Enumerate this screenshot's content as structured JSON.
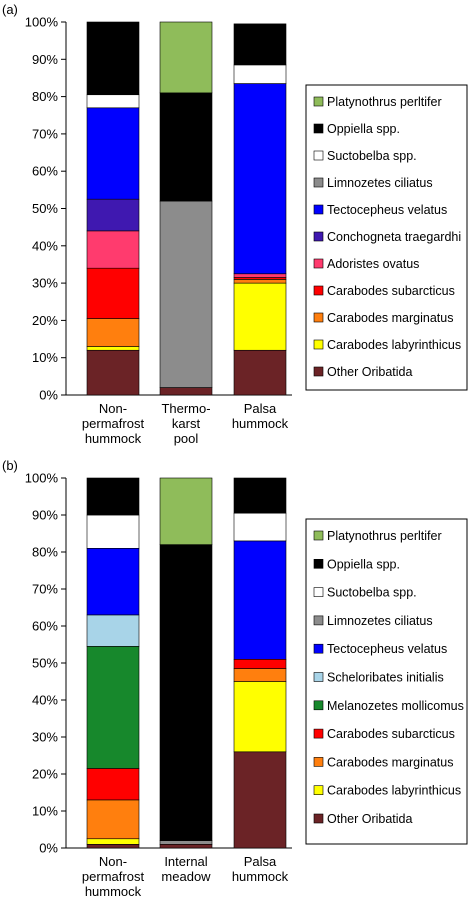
{
  "chart_data": [
    {
      "panel_label": "(a)",
      "type": "bar",
      "stacked": true,
      "y_format": "percent",
      "ylim": [
        0,
        100
      ],
      "yticks": [
        0,
        10,
        20,
        30,
        40,
        50,
        60,
        70,
        80,
        90,
        100
      ],
      "categories": [
        [
          "Non-",
          "permafrost",
          "hummock"
        ],
        [
          "Thermo-",
          "karst",
          "pool"
        ],
        [
          "Palsa",
          "hummock"
        ]
      ],
      "series": [
        {
          "name": "Other Oribatida",
          "color": "#6b2326",
          "values": [
            12,
            2,
            12
          ]
        },
        {
          "name": "Carabodes labyrinthicus",
          "color": "#ffff00",
          "values": [
            1,
            0,
            18
          ]
        },
        {
          "name": "Carabodes marginatus",
          "color": "#ff7f0e",
          "values": [
            7.5,
            0,
            1
          ]
        },
        {
          "name": "Carabodes subarcticus",
          "color": "#ff0000",
          "values": [
            13.5,
            0,
            0.5
          ]
        },
        {
          "name": "Adoristes ovatus",
          "color": "#ff3b6e",
          "values": [
            10,
            0,
            1
          ]
        },
        {
          "name": "Conchogneta traegardhi",
          "color": "#3f18b0",
          "values": [
            8.5,
            0,
            0
          ]
        },
        {
          "name": "Tectocepheus velatus",
          "color": "#0000ff",
          "values": [
            24.5,
            0,
            51
          ]
        },
        {
          "name": "Limnozetes ciliatus",
          "color": "#8c8c8c",
          "values": [
            0,
            50,
            0
          ]
        },
        {
          "name": "Suctobelba spp.",
          "color": "#ffffff",
          "values": [
            3.5,
            0,
            5
          ]
        },
        {
          "name": "Oppiella spp.",
          "color": "#000000",
          "values": [
            19.5,
            29,
            11
          ]
        },
        {
          "name": "Platynothrus perltifer",
          "color": "#8fbc5a",
          "values": [
            0,
            19,
            0
          ]
        }
      ],
      "legend_order": [
        "Platynothrus perltifer",
        "Oppiella spp.",
        "Suctobelba spp.",
        "Limnozetes ciliatus",
        "Tectocepheus velatus",
        "Conchogneta traegardhi",
        "Adoristes ovatus",
        "Carabodes subarcticus",
        "Carabodes marginatus",
        "Carabodes labyrinthicus",
        "Other Oribatida"
      ],
      "legend_position": "right"
    },
    {
      "panel_label": "(b)",
      "type": "bar",
      "stacked": true,
      "y_format": "percent",
      "ylim": [
        0,
        100
      ],
      "yticks": [
        0,
        10,
        20,
        30,
        40,
        50,
        60,
        70,
        80,
        90,
        100
      ],
      "categories": [
        [
          "Non-",
          "permafrost",
          "hummock"
        ],
        [
          "Internal",
          "meadow"
        ],
        [
          "Palsa",
          "hummock"
        ]
      ],
      "series": [
        {
          "name": "Other Oribatida",
          "color": "#6b2326",
          "values": [
            1,
            1,
            26
          ]
        },
        {
          "name": "Carabodes labyrinthicus",
          "color": "#ffff00",
          "values": [
            1.5,
            0,
            19
          ]
        },
        {
          "name": "Carabodes marginatus",
          "color": "#ff7f0e",
          "values": [
            10.5,
            0,
            3.5
          ]
        },
        {
          "name": "Carabodes subarcticus",
          "color": "#ff0000",
          "values": [
            8.5,
            0,
            2.5
          ]
        },
        {
          "name": "Melanozetes mollicomus",
          "color": "#17882c",
          "values": [
            33,
            0,
            0
          ]
        },
        {
          "name": "Scheloribates initialis",
          "color": "#a8d4e8",
          "values": [
            8.5,
            0,
            0
          ]
        },
        {
          "name": "Tectocepheus velatus",
          "color": "#0000ff",
          "values": [
            18,
            0,
            32
          ]
        },
        {
          "name": "Limnozetes ciliatus",
          "color": "#8c8c8c",
          "values": [
            0,
            1,
            0
          ]
        },
        {
          "name": "Suctobelba spp.",
          "color": "#ffffff",
          "values": [
            9,
            0,
            7.5
          ]
        },
        {
          "name": "Oppiella spp.",
          "color": "#000000",
          "values": [
            10,
            80,
            9.5
          ]
        },
        {
          "name": "Platynothrus perltifer",
          "color": "#8fbc5a",
          "values": [
            0,
            18,
            0
          ]
        }
      ],
      "legend_order": [
        "Platynothrus perltifer",
        "Oppiella spp.",
        "Suctobelba spp.",
        "Limnozetes ciliatus",
        "Tectocepheus velatus",
        "Scheloribates initialis",
        "Melanozetes mollicomus",
        "Carabodes subarcticus",
        "Carabodes marginatus",
        "Carabodes labyrinthicus",
        "Other Oribatida"
      ],
      "legend_position": "right"
    }
  ]
}
